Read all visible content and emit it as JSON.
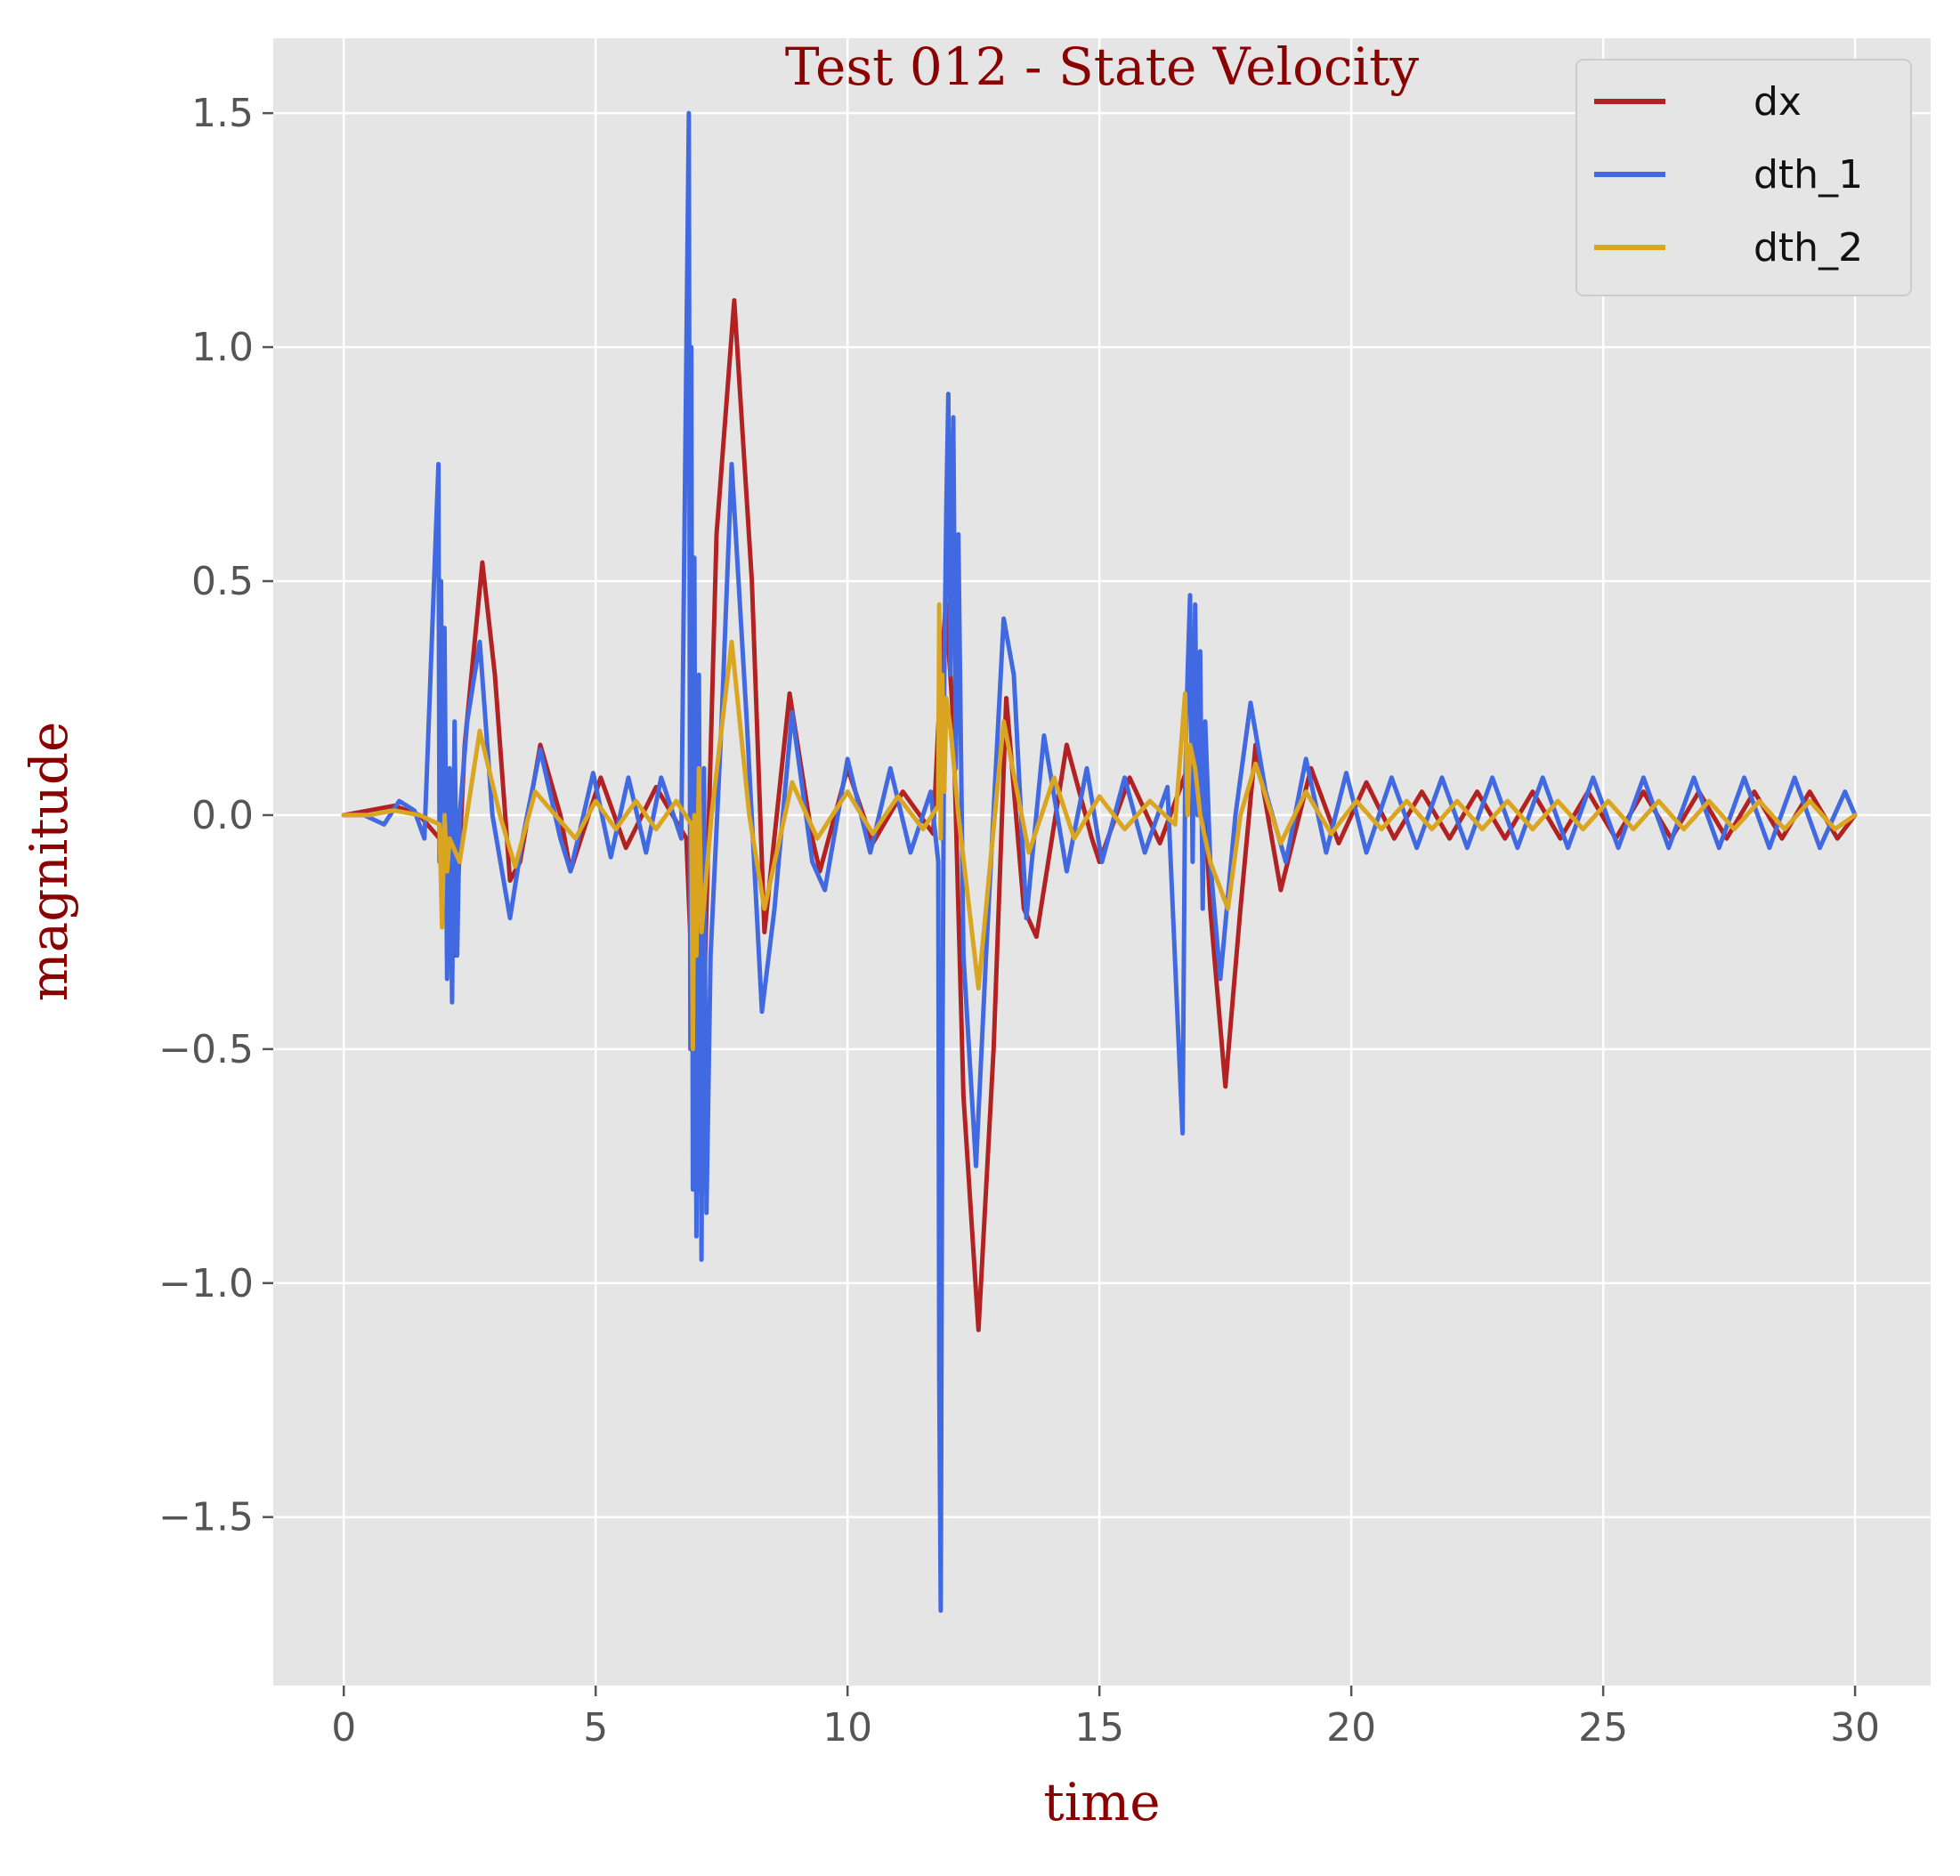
{
  "chart_data": {
    "type": "line",
    "title": "Test 012 - State Velocity",
    "xlabel": "time",
    "ylabel": "magnitude",
    "xlim": [
      -1.4,
      31.5
    ],
    "ylim": [
      -1.86,
      1.66
    ],
    "grid": true,
    "legend_position": "top-right",
    "x_ticks": [
      0,
      5,
      10,
      15,
      20,
      25,
      30
    ],
    "x_tick_labels": [
      "0",
      "5",
      "10",
      "15",
      "20",
      "25",
      "30"
    ],
    "y_ticks": [
      -1.5,
      -1.0,
      -0.5,
      0.0,
      0.5,
      1.0,
      1.5
    ],
    "y_tick_labels": [
      "−1.5",
      "−1.0",
      "−0.5",
      "0.0",
      "0.5",
      "1.0",
      "1.5"
    ],
    "colors": {
      "plot_background": "#e5e5e5",
      "grid": "#ffffff",
      "dx": "#b22222",
      "dth_1": "#4169e1",
      "dth_2": "#daa520"
    },
    "series": [
      {
        "name": "dx",
        "color": "#b22222",
        "x": [
          0,
          0.5,
          1.0,
          1.5,
          1.9,
          2.05,
          2.2,
          2.4,
          2.75,
          3.0,
          3.3,
          3.5,
          3.9,
          4.3,
          4.5,
          5.1,
          5.6,
          6.2,
          6.8,
          6.95,
          7.05,
          7.2,
          7.4,
          7.75,
          8.1,
          8.35,
          8.85,
          9.3,
          9.45,
          10.0,
          10.5,
          11.1,
          11.7,
          11.85,
          11.95,
          12.1,
          12.3,
          12.6,
          12.9,
          13.15,
          13.5,
          13.75,
          14.35,
          14.85,
          15.0,
          15.6,
          16.2,
          16.75,
          16.9,
          17.0,
          17.2,
          17.5,
          17.8,
          18.1,
          18.6,
          19.2,
          19.75,
          20.3,
          20.85,
          21.4,
          21.95,
          22.5,
          23.05,
          23.6,
          24.15,
          24.7,
          25.25,
          25.8,
          26.35,
          26.9,
          27.45,
          28.0,
          28.55,
          29.1,
          29.65,
          30.0
        ],
        "values": [
          0,
          0.01,
          0.02,
          0.0,
          -0.05,
          -0.22,
          -0.3,
          0.15,
          0.54,
          0.3,
          -0.14,
          -0.1,
          0.15,
          0.0,
          -0.12,
          0.08,
          -0.07,
          0.06,
          -0.05,
          -0.45,
          -0.8,
          -0.2,
          0.6,
          1.1,
          0.5,
          -0.25,
          0.26,
          -0.05,
          -0.12,
          0.1,
          -0.06,
          0.05,
          -0.04,
          0.3,
          0.45,
          0.2,
          -0.6,
          -1.1,
          -0.5,
          0.25,
          -0.2,
          -0.26,
          0.15,
          -0.05,
          -0.1,
          0.08,
          -0.06,
          0.1,
          0.2,
          0.22,
          -0.2,
          -0.58,
          -0.2,
          0.15,
          -0.16,
          0.1,
          -0.06,
          0.07,
          -0.05,
          0.05,
          -0.05,
          0.05,
          -0.05,
          0.05,
          -0.05,
          0.05,
          -0.05,
          0.05,
          -0.05,
          0.05,
          -0.05,
          0.05,
          -0.05,
          0.05,
          -0.05,
          0.0
        ]
      },
      {
        "name": "dth_1",
        "color": "#4169e1",
        "x": [
          0,
          0.4,
          0.8,
          1.1,
          1.4,
          1.6,
          1.88,
          1.9,
          1.93,
          1.97,
          2.0,
          2.05,
          2.1,
          2.15,
          2.2,
          2.25,
          2.3,
          2.45,
          2.7,
          2.95,
          3.3,
          3.55,
          3.9,
          4.3,
          4.5,
          4.95,
          5.3,
          5.65,
          6.0,
          6.3,
          6.7,
          6.85,
          6.88,
          6.9,
          6.93,
          6.96,
          7.0,
          7.05,
          7.1,
          7.15,
          7.2,
          7.28,
          7.5,
          7.7,
          8.0,
          8.3,
          8.55,
          8.9,
          9.3,
          9.55,
          10.0,
          10.45,
          10.85,
          11.25,
          11.65,
          11.8,
          11.82,
          11.85,
          11.88,
          11.92,
          11.96,
          12.0,
          12.04,
          12.1,
          12.15,
          12.2,
          12.3,
          12.55,
          12.75,
          13.1,
          13.3,
          13.55,
          13.9,
          14.35,
          14.75,
          15.05,
          15.5,
          15.9,
          16.35,
          16.65,
          16.7,
          16.75,
          16.8,
          16.85,
          16.9,
          16.95,
          17.0,
          17.05,
          17.1,
          17.2,
          17.4,
          17.7,
          18.0,
          18.3,
          18.7,
          19.1,
          19.5,
          19.9,
          20.3,
          20.8,
          21.3,
          21.8,
          22.3,
          22.8,
          23.3,
          23.8,
          24.3,
          24.8,
          25.3,
          25.8,
          26.3,
          26.8,
          27.3,
          27.8,
          28.3,
          28.8,
          29.3,
          29.8,
          30.0
        ],
        "values": [
          0,
          0.0,
          -0.02,
          0.03,
          0.01,
          -0.05,
          0.75,
          -0.1,
          0.5,
          -0.2,
          0.4,
          -0.35,
          0.1,
          -0.4,
          0.2,
          -0.3,
          0.0,
          0.2,
          0.37,
          0.0,
          -0.22,
          -0.05,
          0.14,
          -0.05,
          -0.12,
          0.09,
          -0.09,
          0.08,
          -0.08,
          0.08,
          -0.05,
          1.5,
          -0.5,
          1.0,
          -0.8,
          0.55,
          -0.9,
          0.3,
          -0.95,
          0.1,
          -0.85,
          -0.3,
          0.2,
          0.75,
          0.2,
          -0.42,
          -0.2,
          0.22,
          -0.1,
          -0.16,
          0.12,
          -0.08,
          0.1,
          -0.08,
          0.05,
          -0.1,
          -1.2,
          -1.7,
          -0.6,
          0.3,
          0.65,
          0.9,
          0.3,
          0.85,
          0.1,
          0.6,
          -0.3,
          -0.75,
          -0.3,
          0.42,
          0.3,
          -0.22,
          0.17,
          -0.12,
          0.1,
          -0.1,
          0.08,
          -0.08,
          0.06,
          -0.68,
          0.05,
          0.3,
          0.47,
          -0.1,
          0.45,
          0.0,
          0.35,
          -0.2,
          0.2,
          -0.1,
          -0.35,
          0.0,
          0.24,
          0.05,
          -0.1,
          0.12,
          -0.08,
          0.09,
          -0.08,
          0.08,
          -0.07,
          0.08,
          -0.07,
          0.08,
          -0.07,
          0.08,
          -0.07,
          0.08,
          -0.07,
          0.08,
          -0.07,
          0.08,
          -0.07,
          0.08,
          -0.07,
          0.08,
          -0.07,
          0.05,
          0.0
        ]
      },
      {
        "name": "dth_2",
        "color": "#daa520",
        "x": [
          0,
          0.5,
          1.0,
          1.5,
          1.9,
          1.95,
          2.0,
          2.05,
          2.1,
          2.3,
          2.7,
          3.1,
          3.4,
          3.8,
          4.2,
          4.6,
          5.0,
          5.4,
          5.8,
          6.2,
          6.6,
          6.9,
          6.93,
          6.96,
          7.0,
          7.05,
          7.1,
          7.3,
          7.7,
          8.05,
          8.35,
          8.9,
          9.4,
          10.0,
          10.5,
          11.0,
          11.5,
          11.8,
          11.82,
          11.85,
          11.88,
          11.92,
          11.96,
          12.05,
          12.2,
          12.6,
          13.1,
          13.6,
          14.1,
          14.5,
          15.0,
          15.5,
          16.0,
          16.5,
          16.7,
          16.75,
          16.8,
          16.9,
          17.0,
          17.2,
          17.55,
          17.8,
          18.1,
          18.6,
          19.1,
          19.6,
          20.1,
          20.6,
          21.1,
          21.6,
          22.1,
          22.6,
          23.1,
          23.6,
          24.1,
          24.6,
          25.1,
          25.6,
          26.1,
          26.6,
          27.1,
          27.6,
          28.1,
          28.6,
          29.1,
          29.6,
          30.0
        ],
        "values": [
          0,
          0.0,
          0.01,
          0.0,
          -0.02,
          -0.24,
          0.0,
          -0.12,
          -0.05,
          -0.1,
          0.18,
          0.0,
          -0.11,
          0.05,
          0.0,
          -0.05,
          0.03,
          -0.03,
          0.03,
          -0.03,
          0.03,
          -0.02,
          -0.5,
          0.0,
          -0.3,
          0.1,
          -0.25,
          0.0,
          0.37,
          0.0,
          -0.2,
          0.07,
          -0.05,
          0.05,
          -0.04,
          0.04,
          -0.03,
          0.02,
          0.45,
          -0.05,
          0.3,
          0.05,
          0.25,
          0.18,
          0.0,
          -0.37,
          0.2,
          -0.08,
          0.08,
          -0.05,
          0.04,
          -0.03,
          0.03,
          -0.02,
          0.26,
          0.0,
          0.15,
          0.1,
          0.0,
          -0.1,
          -0.2,
          0.0,
          0.11,
          -0.06,
          0.05,
          -0.04,
          0.03,
          -0.03,
          0.03,
          -0.03,
          0.03,
          -0.03,
          0.03,
          -0.03,
          0.03,
          -0.03,
          0.03,
          -0.03,
          0.03,
          -0.03,
          0.03,
          -0.03,
          0.03,
          -0.03,
          0.03,
          -0.03,
          0.0
        ]
      }
    ]
  }
}
